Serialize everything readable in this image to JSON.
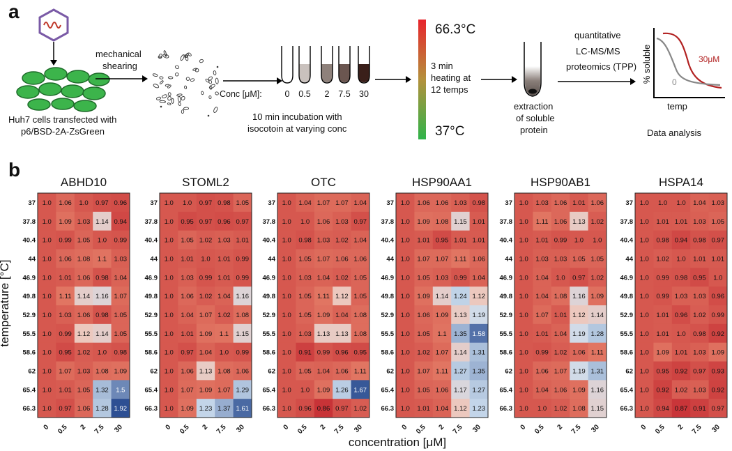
{
  "panel_a": {
    "label": "a",
    "cells_caption": [
      "Huh7 cells transfected with",
      "p6/BSD-2A-ZsGreen"
    ],
    "shearing_label": [
      "mechanical",
      "shearing"
    ],
    "conc_prefix": "Conc [μM]:",
    "conc_values": [
      "0",
      "0.5",
      "2",
      "7.5",
      "30"
    ],
    "incubation_caption": [
      "10 min incubation with",
      "isocotoin at varying conc"
    ],
    "temp_high": "66.3°C",
    "temp_low": "37°C",
    "heating_label": [
      "3 min",
      "heating at",
      "12 temps"
    ],
    "extraction_label": [
      "extraction",
      "of soluble",
      "protein"
    ],
    "proteomics_label": [
      "quantitative",
      "LC-MS/MS",
      "proteomics (TPP)"
    ],
    "plot_ylabel": "% soluble",
    "plot_xlabel": "temp",
    "curve_30_label": "30μM",
    "curve_0_label": "0",
    "analysis_caption": "Data analysis",
    "colors": {
      "green": "#3cb44b",
      "dark_green": "#1e6b2a",
      "heat_top": "#e8242c",
      "heat_mid": "#b4913c",
      "heat_bottom": "#2fb34a",
      "curve_30": "#b22222",
      "curve_0": "#888888",
      "virus": "#7a5aa6"
    }
  },
  "chart_data": {
    "type": "heatmap",
    "panel_label": "b",
    "ylabel": "temperature [°C]",
    "xlabel": "concentration [μM]",
    "y_categories": [
      "37",
      "37.8",
      "40.4",
      "44",
      "46.9",
      "49.8",
      "52.9",
      "55.5",
      "58.6",
      "62",
      "65.4",
      "66.3"
    ],
    "x_categories": [
      "0",
      "0.5",
      "2",
      "7.5",
      "30"
    ],
    "color_scale": {
      "low": "#2d4f93",
      "mid": "#f4efec",
      "high": "#c8242c",
      "center": 1.0
    },
    "panels": [
      {
        "title": "ABHD10",
        "values": [
          [
            1.0,
            1.06,
            1.0,
            0.97,
            0.96
          ],
          [
            1.0,
            1.09,
            1.03,
            1.14,
            0.94
          ],
          [
            1.0,
            0.99,
            1.05,
            1.0,
            0.99
          ],
          [
            1.0,
            1.06,
            1.08,
            1.1,
            1.03
          ],
          [
            1.0,
            1.01,
            1.06,
            0.98,
            1.04
          ],
          [
            1.0,
            1.11,
            1.14,
            1.16,
            1.07
          ],
          [
            1.0,
            1.03,
            1.06,
            0.98,
            1.05
          ],
          [
            1.0,
            0.99,
            1.12,
            1.14,
            1.05
          ],
          [
            1.0,
            0.95,
            1.02,
            1.0,
            0.98
          ],
          [
            1.0,
            1.07,
            1.03,
            1.08,
            1.09
          ],
          [
            1.0,
            1.01,
            1.05,
            1.32,
            1.5
          ],
          [
            1.0,
            0.97,
            1.06,
            1.28,
            1.92
          ]
        ]
      },
      {
        "title": "STOML2",
        "values": [
          [
            1.0,
            1.0,
            0.97,
            0.98,
            1.05
          ],
          [
            1.0,
            0.95,
            0.97,
            0.96,
            0.97
          ],
          [
            1.0,
            1.05,
            1.02,
            1.03,
            1.01
          ],
          [
            1.0,
            1.01,
            1.0,
            1.01,
            0.99
          ],
          [
            1.0,
            1.03,
            0.99,
            1.01,
            0.99
          ],
          [
            1.0,
            1.06,
            1.02,
            1.04,
            1.16
          ],
          [
            1.0,
            1.04,
            1.07,
            1.02,
            1.08
          ],
          [
            1.0,
            1.01,
            1.09,
            1.1,
            1.15
          ],
          [
            1.0,
            0.97,
            1.04,
            1.0,
            0.99
          ],
          [
            1.0,
            1.06,
            1.13,
            1.08,
            1.06
          ],
          [
            1.0,
            1.07,
            1.09,
            1.07,
            1.29
          ],
          [
            1.0,
            1.09,
            1.23,
            1.37,
            1.61
          ]
        ]
      },
      {
        "title": "OTC",
        "values": [
          [
            1.0,
            1.04,
            1.07,
            1.07,
            1.04
          ],
          [
            1.0,
            1.0,
            1.06,
            1.03,
            0.97
          ],
          [
            1.0,
            0.98,
            1.03,
            1.02,
            1.04
          ],
          [
            1.0,
            1.05,
            1.07,
            1.06,
            1.06
          ],
          [
            1.0,
            1.03,
            1.04,
            1.02,
            1.05
          ],
          [
            1.0,
            1.05,
            1.11,
            1.12,
            1.05
          ],
          [
            1.0,
            1.05,
            1.09,
            1.04,
            1.08
          ],
          [
            1.0,
            1.03,
            1.13,
            1.13,
            1.08
          ],
          [
            1.0,
            0.91,
            0.99,
            0.96,
            0.95
          ],
          [
            1.0,
            1.05,
            1.04,
            1.06,
            1.11
          ],
          [
            1.0,
            1.0,
            1.09,
            1.26,
            1.67
          ],
          [
            1.0,
            0.96,
            0.86,
            0.97,
            1.02
          ]
        ]
      },
      {
        "title": "HSP90AA1",
        "values": [
          [
            1.0,
            1.06,
            1.06,
            1.03,
            0.98
          ],
          [
            1.0,
            1.09,
            1.08,
            1.15,
            1.01
          ],
          [
            1.0,
            1.01,
            0.95,
            1.01,
            1.01
          ],
          [
            1.0,
            1.07,
            1.07,
            1.11,
            1.06
          ],
          [
            1.0,
            1.05,
            1.03,
            0.99,
            1.04
          ],
          [
            1.0,
            1.09,
            1.14,
            1.24,
            1.12
          ],
          [
            1.0,
            1.06,
            1.09,
            1.13,
            1.19
          ],
          [
            1.0,
            1.05,
            1.1,
            1.35,
            1.58
          ],
          [
            1.0,
            1.02,
            1.07,
            1.14,
            1.31
          ],
          [
            1.0,
            1.07,
            1.11,
            1.27,
            1.35
          ],
          [
            1.0,
            1.05,
            1.06,
            1.17,
            1.27
          ],
          [
            1.0,
            1.01,
            1.04,
            1.12,
            1.23
          ]
        ]
      },
      {
        "title": "HSP90AB1",
        "values": [
          [
            1.0,
            1.03,
            1.06,
            1.01,
            1.06
          ],
          [
            1.0,
            1.11,
            1.06,
            1.13,
            1.02
          ],
          [
            1.0,
            1.01,
            0.99,
            1.0,
            1.0
          ],
          [
            1.0,
            1.03,
            1.03,
            1.05,
            1.05
          ],
          [
            1.0,
            1.04,
            1.0,
            0.97,
            1.02
          ],
          [
            1.0,
            1.04,
            1.08,
            1.16,
            1.09
          ],
          [
            1.0,
            1.07,
            1.01,
            1.12,
            1.14
          ],
          [
            1.0,
            1.01,
            1.04,
            1.19,
            1.28
          ],
          [
            1.0,
            0.99,
            1.02,
            1.06,
            1.11
          ],
          [
            1.0,
            1.06,
            1.07,
            1.19,
            1.31
          ],
          [
            1.0,
            1.04,
            1.06,
            1.09,
            1.16
          ],
          [
            1.0,
            1.0,
            1.02,
            1.08,
            1.15
          ]
        ]
      },
      {
        "title": "HSPA14",
        "values": [
          [
            1.0,
            1.0,
            1.0,
            1.04,
            1.03
          ],
          [
            1.0,
            1.01,
            1.01,
            1.03,
            1.05
          ],
          [
            1.0,
            0.98,
            0.94,
            0.98,
            0.97
          ],
          [
            1.0,
            1.02,
            1.0,
            1.01,
            1.01
          ],
          [
            1.0,
            0.99,
            0.98,
            0.95,
            1.0
          ],
          [
            1.0,
            0.99,
            1.03,
            1.03,
            0.96
          ],
          [
            1.0,
            1.01,
            0.96,
            1.02,
            0.99
          ],
          [
            1.0,
            1.01,
            1.0,
            0.98,
            0.92
          ],
          [
            1.0,
            1.09,
            1.01,
            1.03,
            1.09
          ],
          [
            1.0,
            0.95,
            0.92,
            0.97,
            0.93
          ],
          [
            1.0,
            0.92,
            1.02,
            1.03,
            0.92
          ],
          [
            1.0,
            0.94,
            0.87,
            0.91,
            0.97
          ]
        ]
      }
    ]
  }
}
